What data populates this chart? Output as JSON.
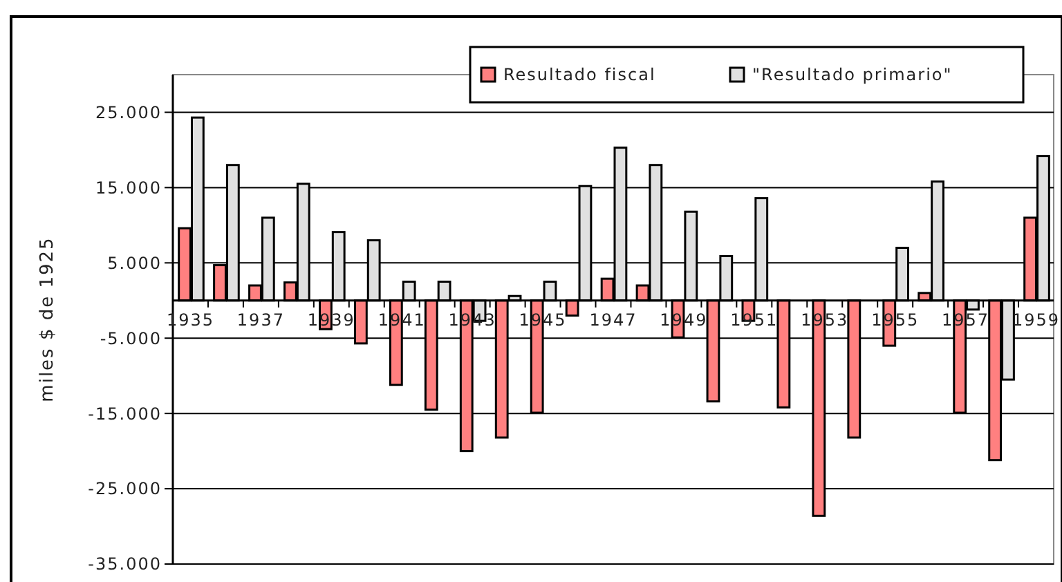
{
  "chart_data": {
    "type": "bar",
    "ylabel": "miles $ de 1925",
    "categories": [
      "1935",
      null,
      "1937",
      null,
      "1939",
      null,
      "1941",
      null,
      "1943",
      null,
      "1945",
      null,
      "1947",
      null,
      "1949",
      null,
      "1951",
      null,
      "1953",
      null,
      "1955",
      null,
      "1957",
      null,
      "1959"
    ],
    "series": [
      {
        "name": "Resultado fiscal",
        "color": "#ff8080",
        "values": [
          9600,
          4700,
          2000,
          2400,
          -3800,
          -5700,
          -11200,
          -14500,
          -20000,
          -18200,
          -14900,
          -2000,
          2900,
          2000,
          -4900,
          -13400,
          -2700,
          -14200,
          -28600,
          -18200,
          -6000,
          1000,
          -14900,
          -21200,
          11000
        ]
      },
      {
        "name": "\"Resultado primario\"",
        "color": "#e0e0e0",
        "values": [
          24300,
          18000,
          11000,
          15500,
          9100,
          8000,
          2500,
          2500,
          -2700,
          600,
          2500,
          15200,
          20300,
          18000,
          11800,
          5900,
          13600,
          null,
          null,
          null,
          7000,
          15800,
          -1200,
          -10500,
          19200
        ]
      }
    ],
    "ylim": [
      -35000,
      30000
    ],
    "yticks": [
      {
        "value": -35000,
        "label": "-35.000"
      },
      {
        "value": -25000,
        "label": "-25.000"
      },
      {
        "value": -15000,
        "label": "-15.000"
      },
      {
        "value": -5000,
        "label": "-5.000"
      },
      {
        "value": 5000,
        "label": "5.000"
      },
      {
        "value": 15000,
        "label": "15.000"
      },
      {
        "value": 25000,
        "label": "25.000"
      }
    ],
    "grid": "y",
    "legend": "top right"
  }
}
